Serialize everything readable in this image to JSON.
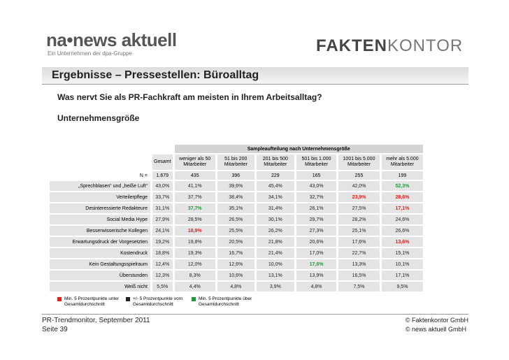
{
  "logos": {
    "left_brand": "na•news aktuell",
    "left_tagline": "Ein Unternehmen der dpa-Gruppe",
    "right_brand_bold": "FAKTEN",
    "right_brand_light": "KONTOR"
  },
  "header": {
    "title": "Ergebnisse – Pressestellen: Büroalltag",
    "question": "Was nervt Sie als PR-Fachkraft am meisten in Ihrem Arbeitsalltag?",
    "subtitle": "Unternehmensgröße"
  },
  "table": {
    "group_header": "Sampleaufteilung nach Unternehmensgröße",
    "columns": [
      "Gesamt",
      "weniger als 50 Mitarbeiter",
      "51 bis 200 Mitarbeiter",
      "201 bis 500 Mitarbeiter",
      "501 bis 1.000 Mitarbeiter",
      "1001 bis 5.000 Mitarbeiter",
      "mehr als 5.000 Mitarbeiter"
    ],
    "n_label": "N =",
    "n_values": [
      "1.679",
      "435",
      "396",
      "229",
      "165",
      "255",
      "199"
    ],
    "rows": [
      {
        "label": "„Sprechblasen“ und „heiße Luft“",
        "cells": [
          "43,0%",
          "41,1%",
          "39,6%",
          "45,4%",
          "43,0%",
          "42,0%",
          "52,3%"
        ],
        "tones": [
          "black",
          "black",
          "black",
          "black",
          "black",
          "black",
          "green"
        ]
      },
      {
        "label": "Verteilerpflege",
        "cells": [
          "33,7%",
          "37,7%",
          "38,4%",
          "34,1%",
          "32,7%",
          "23,9%",
          "28,6%"
        ],
        "tones": [
          "black",
          "black",
          "black",
          "black",
          "black",
          "red",
          "red"
        ]
      },
      {
        "label": "Desinteressierte Redakteure",
        "cells": [
          "31,1%",
          "37,7%",
          "35,1%",
          "31,4%",
          "26,1%",
          "27,5%",
          "17,1%"
        ],
        "tones": [
          "black",
          "green",
          "black",
          "black",
          "black",
          "black",
          "red"
        ]
      },
      {
        "label": "Social Media Hype",
        "cells": [
          "27,9%",
          "28,5%",
          "26,5%",
          "30,1%",
          "29,7%",
          "28,2%",
          "24,6%"
        ],
        "tones": [
          "black",
          "black",
          "black",
          "black",
          "black",
          "black",
          "black"
        ]
      },
      {
        "label": "Besserwisserische Kollegen",
        "cells": [
          "24,1%",
          "18,9%",
          "25,5%",
          "26,2%",
          "27,3%",
          "25,1%",
          "26,6%"
        ],
        "tones": [
          "black",
          "red",
          "black",
          "black",
          "black",
          "black",
          "black"
        ]
      },
      {
        "label": "Erwartungsdruck der Vorgesetzten",
        "cells": [
          "19,2%",
          "19,8%",
          "20,5%",
          "21,8%",
          "20,6%",
          "17,6%",
          "13,6%"
        ],
        "tones": [
          "black",
          "black",
          "black",
          "black",
          "black",
          "black",
          "red"
        ]
      },
      {
        "label": "Kostendruck",
        "cells": [
          "18,8%",
          "19,3%",
          "16,7%",
          "21,4%",
          "17,0%",
          "22,7%",
          "15,1%"
        ],
        "tones": [
          "black",
          "black",
          "black",
          "black",
          "black",
          "black",
          "black"
        ]
      },
      {
        "label": "Kein Gestaltungsspielraum",
        "cells": [
          "12,4%",
          "12,0%",
          "12,6%",
          "10,0%",
          "17,6%",
          "13,3%",
          "10,1%"
        ],
        "tones": [
          "black",
          "black",
          "black",
          "black",
          "green",
          "black",
          "black"
        ]
      },
      {
        "label": "Überstunden",
        "cells": [
          "12,3%",
          "8,3%",
          "10,6%",
          "13,1%",
          "13,9%",
          "16,5%",
          "17,1%"
        ],
        "tones": [
          "black",
          "black",
          "black",
          "black",
          "black",
          "black",
          "black"
        ]
      },
      {
        "label": "Weiß nicht",
        "cells": [
          "5,5%",
          "4,4%",
          "4,8%",
          "3,9%",
          "4,8%",
          "7,5%",
          "9,5%"
        ],
        "tones": [
          "black",
          "black",
          "black",
          "black",
          "black",
          "black",
          "black"
        ]
      }
    ]
  },
  "legend": [
    {
      "label": "Min. 5 Prozentpunkte unter Gesamtdurchschnitt",
      "color": "red"
    },
    {
      "label": "+/- 5 Prozentpunkte vom Gesamtdurchschnitt",
      "color": "black"
    },
    {
      "label": "Min. 5 Prozentpunkte über Gesamtdurchschnitt",
      "color": "green"
    }
  ],
  "footer": {
    "source": "PR-Trendmonitor, September 2011",
    "page": "Seite 39",
    "copyright_1": "© Faktenkontor GmbH",
    "copyright_2": "© news aktuell GmbH"
  }
}
